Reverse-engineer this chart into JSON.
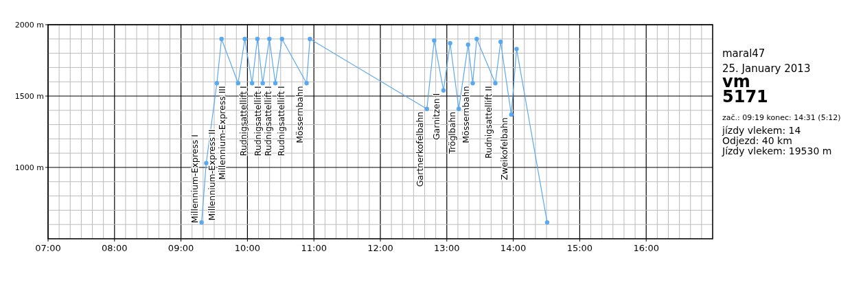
{
  "chart_data": {
    "type": "line",
    "xlim": [
      7,
      17
    ],
    "ylim": [
      500,
      2000
    ],
    "xticks": [
      {
        "value": 7,
        "label": "07:00"
      },
      {
        "value": 7.1667,
        "label": null
      },
      {
        "value": 7.3333,
        "label": null
      },
      {
        "value": 7.5,
        "label": null
      },
      {
        "value": 7.6667,
        "label": null
      },
      {
        "value": 7.8333,
        "label": null
      },
      {
        "value": 8,
        "label": "08:00"
      },
      {
        "value": 8.1667,
        "label": null
      },
      {
        "value": 8.3333,
        "label": null
      },
      {
        "value": 8.5,
        "label": null
      },
      {
        "value": 8.6667,
        "label": null
      },
      {
        "value": 8.8333,
        "label": null
      },
      {
        "value": 9,
        "label": "09:00"
      },
      {
        "value": 9.1667,
        "label": null
      },
      {
        "value": 9.3333,
        "label": null
      },
      {
        "value": 9.5,
        "label": null
      },
      {
        "value": 9.6667,
        "label": null
      },
      {
        "value": 9.8333,
        "label": null
      },
      {
        "value": 10,
        "label": "10:00"
      },
      {
        "value": 10.1667,
        "label": null
      },
      {
        "value": 10.3333,
        "label": null
      },
      {
        "value": 10.5,
        "label": null
      },
      {
        "value": 10.6667,
        "label": null
      },
      {
        "value": 10.8333,
        "label": null
      },
      {
        "value": 11,
        "label": "11:00"
      },
      {
        "value": 11.1667,
        "label": null
      },
      {
        "value": 11.3333,
        "label": null
      },
      {
        "value": 11.5,
        "label": null
      },
      {
        "value": 11.6667,
        "label": null
      },
      {
        "value": 11.8333,
        "label": null
      },
      {
        "value": 12,
        "label": "12:00"
      },
      {
        "value": 12.1667,
        "label": null
      },
      {
        "value": 12.3333,
        "label": null
      },
      {
        "value": 12.5,
        "label": null
      },
      {
        "value": 12.6667,
        "label": null
      },
      {
        "value": 12.8333,
        "label": null
      },
      {
        "value": 13,
        "label": "13:00"
      },
      {
        "value": 13.1667,
        "label": null
      },
      {
        "value": 13.3333,
        "label": null
      },
      {
        "value": 13.5,
        "label": null
      },
      {
        "value": 13.6667,
        "label": null
      },
      {
        "value": 13.8333,
        "label": null
      },
      {
        "value": 14,
        "label": "14:00"
      },
      {
        "value": 14.1667,
        "label": null
      },
      {
        "value": 14.3333,
        "label": null
      },
      {
        "value": 14.5,
        "label": null
      },
      {
        "value": 14.6667,
        "label": null
      },
      {
        "value": 14.8333,
        "label": null
      },
      {
        "value": 15,
        "label": "15:00"
      },
      {
        "value": 15.1667,
        "label": null
      },
      {
        "value": 15.3333,
        "label": null
      },
      {
        "value": 15.5,
        "label": null
      },
      {
        "value": 15.6667,
        "label": null
      },
      {
        "value": 15.8333,
        "label": null
      },
      {
        "value": 16,
        "label": "16:00"
      },
      {
        "value": 16.1667,
        "label": null
      },
      {
        "value": 16.3333,
        "label": null
      },
      {
        "value": 16.5,
        "label": null
      },
      {
        "value": 16.6667,
        "label": null
      },
      {
        "value": 16.8333,
        "label": null
      },
      {
        "value": 17,
        "label": null
      }
    ],
    "yticks": [
      {
        "value": 500,
        "label": null
      },
      {
        "value": 600,
        "label": null
      },
      {
        "value": 700,
        "label": null
      },
      {
        "value": 800,
        "label": null
      },
      {
        "value": 900,
        "label": null
      },
      {
        "value": 1000,
        "label": "1000 m"
      },
      {
        "value": 1100,
        "label": null
      },
      {
        "value": 1200,
        "label": null
      },
      {
        "value": 1300,
        "label": null
      },
      {
        "value": 1400,
        "label": null
      },
      {
        "value": 1500,
        "label": "1500 m"
      },
      {
        "value": 1600,
        "label": null
      },
      {
        "value": 1700,
        "label": null
      },
      {
        "value": 1800,
        "label": null
      },
      {
        "value": 1900,
        "label": null
      },
      {
        "value": 2000,
        "label": "2000 m"
      }
    ],
    "grid": true,
    "marker": "circle",
    "line_style": "solid",
    "series": [
      {
        "color": "#5aa9ee",
        "x": [
          9.31,
          9.38,
          9.54,
          9.61,
          9.86,
          9.96,
          10.07,
          10.15,
          10.23,
          10.33,
          10.42,
          10.52,
          10.89,
          10.94,
          12.7,
          12.81,
          12.95,
          13.05,
          13.18,
          13.32,
          13.39,
          13.45,
          13.73,
          13.81,
          13.97,
          14.05,
          14.51
        ],
        "values": [
          615,
          1030,
          1590,
          1900,
          1590,
          1900,
          1590,
          1900,
          1590,
          1900,
          1590,
          1900,
          1590,
          1900,
          1410,
          1890,
          1540,
          1870,
          1410,
          1860,
          1590,
          1900,
          1590,
          1880,
          1370,
          1830,
          615
        ]
      }
    ],
    "annotations": [
      {
        "text": "Millennium-Express I",
        "x": 9.31,
        "y": 615
      },
      {
        "text": "Millennium-Express II",
        "x": 9.38,
        "y": 1030
      },
      {
        "text": "Millennium-Express III",
        "x": 9.54,
        "y": 1590
      },
      {
        "text": "Rudnigsattellift I",
        "x": 9.86,
        "y": 1590
      },
      {
        "text": "Rudnigsattellift I",
        "x": 10.07,
        "y": 1590
      },
      {
        "text": "Rudnigsattellift I",
        "x": 10.23,
        "y": 1590
      },
      {
        "text": "Rudnigsattellift I",
        "x": 10.42,
        "y": 1590
      },
      {
        "text": "Mössernbahn",
        "x": 10.89,
        "y": 1590
      },
      {
        "text": "Gartnerkofelbahn",
        "x": 12.7,
        "y": 1410
      },
      {
        "text": "Garnitzen I",
        "x": 12.95,
        "y": 1540
      },
      {
        "text": "Tröglbahn",
        "x": 13.18,
        "y": 1410
      },
      {
        "text": "Mössernbahn",
        "x": 13.39,
        "y": 1590
      },
      {
        "text": "Rudnigsattellift II",
        "x": 13.73,
        "y": 1590
      },
      {
        "text": "Zweikofelbahn",
        "x": 13.97,
        "y": 1370
      },
      "maral47",
      "25. January 2013",
      "vm",
      "5171",
      "zač.: 09:19  konec: 14:31 (5:12)",
      "jízdy vlekem: 14",
      "Odjezd: 40 km",
      "Jízdy vlekem: 19530 m"
    ]
  }
}
